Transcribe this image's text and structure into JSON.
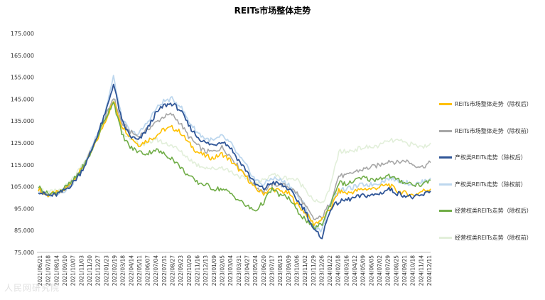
{
  "chart_data": {
    "type": "line",
    "title": "REITs市场整体走势",
    "xlabel": "",
    "ylabel": "",
    "ylim": [
      75,
      175
    ],
    "yticks": [
      "75.000",
      "85.000",
      "95.000",
      "105.000",
      "115.000",
      "125.000",
      "135.000",
      "145.000",
      "155.000",
      "165.000",
      "175.000"
    ],
    "x_ticks": [
      "2021/06/21",
      "2021/07/18",
      "2021/08/14",
      "2021/09/10",
      "2021/10/07",
      "2021/11/03",
      "2021/11/30",
      "2021/12/27",
      "2022/01/23",
      "2022/02/19",
      "2022/03/18",
      "2022/04/14",
      "2022/05/11",
      "2022/06/07",
      "2022/07/04",
      "2022/07/31",
      "2022/08/27",
      "2022/09/23",
      "2022/10/20",
      "2022/11/16",
      "2022/12/13",
      "2023/01/09",
      "2023/02/05",
      "2023/03/04",
      "2023/03/31",
      "2023/04/27",
      "2023/05/24",
      "2023/06/20",
      "2023/07/17",
      "2023/08/13",
      "2023/09/09",
      "2023/10/06",
      "2023/11/02",
      "2023/11/29",
      "2023/12/26",
      "2024/01/22",
      "2024/02/18",
      "2024/03/16",
      "2024/04/12",
      "2024/05/09",
      "2024/06/05",
      "2024/07/02",
      "2024/07/29",
      "2024/08/25",
      "2024/09/21",
      "2024/10/18",
      "2024/11/14",
      "2024/12/11"
    ],
    "legend_position": "right",
    "grid": false,
    "series": [
      {
        "name": "REITs市场整体走势（除权后）",
        "color": "#FFC000",
        "width": 1.6,
        "values": [
          104,
          101,
          102,
          103,
          107,
          112,
          118,
          126,
          135,
          144,
          133,
          128,
          124,
          126,
          128,
          131,
          132,
          130,
          125,
          121,
          119,
          118,
          120,
          117,
          113,
          109,
          104,
          102,
          104,
          103,
          102,
          97,
          93,
          88,
          90,
          95,
          103,
          102,
          103,
          104,
          104,
          105,
          106,
          103,
          102,
          101,
          103,
          104
        ]
      },
      {
        "name": "REITs市场整体走势（除权前）",
        "color": "#A6A6A6",
        "width": 1.6,
        "values": [
          104,
          101,
          102,
          103,
          107,
          112,
          119,
          127,
          136,
          146,
          134,
          130,
          128,
          131,
          134,
          137,
          138,
          134,
          128,
          124,
          121,
          121,
          123,
          119,
          114,
          110,
          105,
          103,
          106,
          106,
          105,
          102,
          96,
          90,
          91,
          98,
          110,
          110,
          112,
          113,
          114,
          115,
          117,
          116,
          117,
          115,
          114,
          116
        ]
      },
      {
        "name": "产权类REITs走势（除权后）",
        "color": "#2F5597",
        "width": 1.8,
        "values": [
          103,
          101,
          101,
          103,
          106,
          111,
          118,
          128,
          138,
          152,
          135,
          128,
          126,
          131,
          138,
          142,
          143,
          140,
          133,
          128,
          125,
          124,
          126,
          123,
          117,
          112,
          106,
          104,
          107,
          106,
          104,
          99,
          94,
          85,
          82,
          95,
          98,
          99,
          100,
          101,
          101,
          102,
          104,
          102,
          101,
          100,
          101,
          103
        ]
      },
      {
        "name": "产权类REITs走势（除权前）",
        "color": "#BDD7EE",
        "width": 1.8,
        "values": [
          103,
          101,
          102,
          103,
          106,
          112,
          119,
          129,
          139,
          155,
          136,
          130,
          129,
          134,
          140,
          144,
          145,
          142,
          135,
          130,
          127,
          126,
          128,
          125,
          119,
          114,
          108,
          106,
          109,
          108,
          106,
          101,
          96,
          87,
          85,
          98,
          103,
          104,
          105,
          106,
          106,
          107,
          109,
          108,
          107,
          106,
          107,
          109
        ]
      },
      {
        "name": "经营权类REITs走势（除权后）",
        "color": "#70AD47",
        "width": 1.6,
        "values": [
          105,
          102,
          102,
          104,
          107,
          112,
          118,
          127,
          136,
          144,
          129,
          123,
          121,
          120,
          122,
          120,
          118,
          114,
          110,
          107,
          106,
          104,
          104,
          102,
          99,
          96,
          94,
          98,
          104,
          101,
          100,
          94,
          90,
          86,
          88,
          97,
          107,
          106,
          108,
          109,
          108,
          109,
          110,
          108,
          107,
          106,
          106,
          108
        ]
      },
      {
        "name": "经营权类REITs走势（除权前）",
        "color": "#E2EFDA",
        "width": 1.6,
        "values": [
          105,
          102,
          103,
          104,
          108,
          113,
          119,
          128,
          137,
          145,
          131,
          126,
          125,
          124,
          127,
          125,
          124,
          121,
          118,
          115,
          114,
          113,
          114,
          112,
          110,
          108,
          106,
          108,
          111,
          109,
          109,
          108,
          104,
          99,
          97,
          105,
          121,
          121,
          122,
          123,
          123,
          124,
          126,
          126,
          125,
          124,
          123,
          125
        ]
      }
    ]
  },
  "watermark": "人民网研究院"
}
